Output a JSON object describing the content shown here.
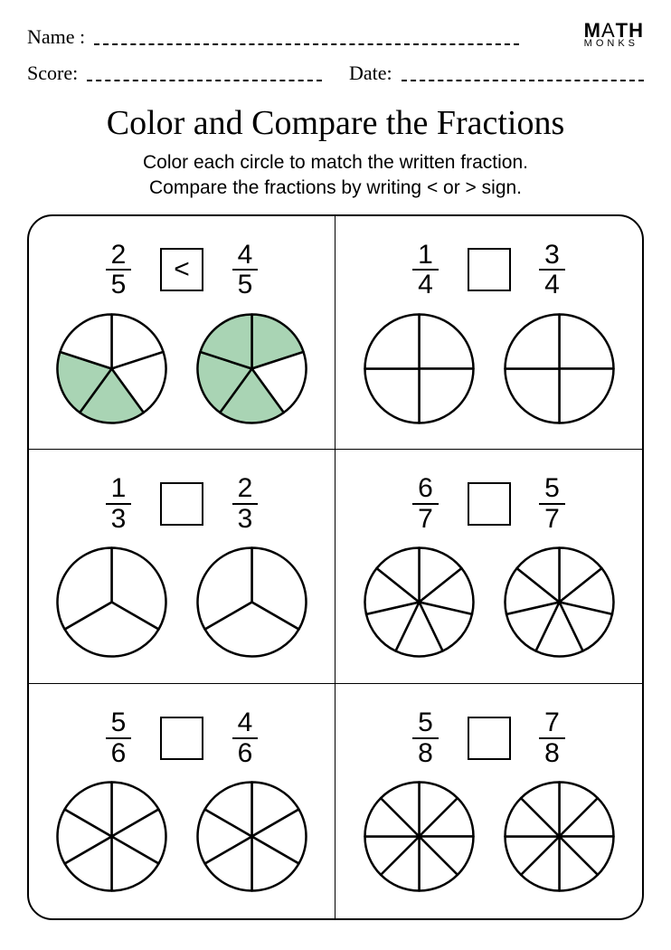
{
  "header": {
    "name_label": "Name :",
    "score_label": "Score:",
    "date_label": "Date:"
  },
  "logo": {
    "line1_a": "M",
    "line1_b": "A",
    "line1_c": "TH",
    "line2": "MONKS"
  },
  "title": "Color and Compare the Fractions",
  "instructions_line1": "Color each circle to match the written fraction.",
  "instructions_line2": "Compare the fractions by writing < or > sign.",
  "style": {
    "stroke_color": "#000000",
    "stroke_width": 2.5,
    "fill_color": "#a9d4b4",
    "empty_fill": "#ffffff",
    "circle_radius": 60,
    "pie_start_angle_deg": -90
  },
  "problems": [
    {
      "left": {
        "numerator": "2",
        "denominator": "5",
        "slices": 5,
        "filled": [
          2,
          3
        ]
      },
      "right": {
        "numerator": "4",
        "denominator": "5",
        "slices": 5,
        "filled": [
          0,
          2,
          3,
          4
        ]
      },
      "comparison": "<"
    },
    {
      "left": {
        "numerator": "1",
        "denominator": "4",
        "slices": 4,
        "filled": []
      },
      "right": {
        "numerator": "3",
        "denominator": "4",
        "slices": 4,
        "filled": []
      },
      "comparison": ""
    },
    {
      "left": {
        "numerator": "1",
        "denominator": "3",
        "slices": 3,
        "filled": []
      },
      "right": {
        "numerator": "2",
        "denominator": "3",
        "slices": 3,
        "filled": []
      },
      "comparison": ""
    },
    {
      "left": {
        "numerator": "6",
        "denominator": "7",
        "slices": 7,
        "filled": []
      },
      "right": {
        "numerator": "5",
        "denominator": "7",
        "slices": 7,
        "filled": []
      },
      "comparison": ""
    },
    {
      "left": {
        "numerator": "5",
        "denominator": "6",
        "slices": 6,
        "filled": []
      },
      "right": {
        "numerator": "4",
        "denominator": "6",
        "slices": 6,
        "filled": []
      },
      "comparison": ""
    },
    {
      "left": {
        "numerator": "5",
        "denominator": "8",
        "slices": 8,
        "filled": []
      },
      "right": {
        "numerator": "7",
        "denominator": "8",
        "slices": 8,
        "filled": []
      },
      "comparison": ""
    }
  ]
}
